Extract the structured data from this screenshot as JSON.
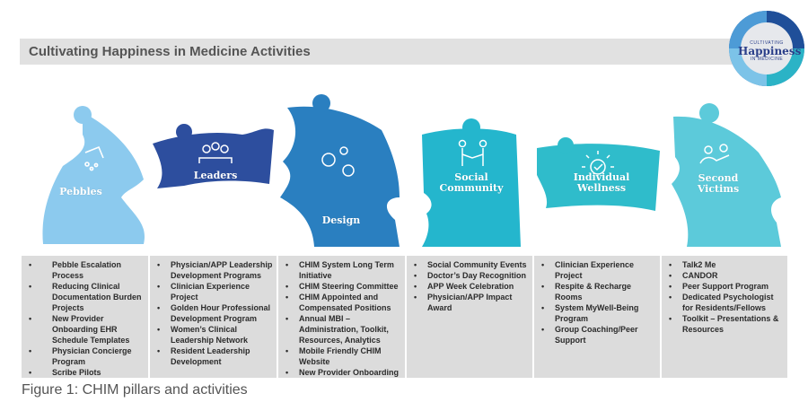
{
  "title": "Cultivating Happiness in Medicine Activities",
  "logo": {
    "line1": "CULTIVATING",
    "line2": "Happiness",
    "line3": "IN MEDICINE"
  },
  "colors": {
    "pebbles": "#8ccaee",
    "leaders": "#2d4e9e",
    "design": "#2a7fc0",
    "social": "#24b6cd",
    "wellness": "#2fbccb",
    "victims": "#5ccada",
    "panel": "#dcdcdc"
  },
  "pillars": [
    {
      "label": "Pebbles",
      "icon": "pebbles-icon",
      "items": [
        "Pebble Escalation Process",
        "Reducing Clinical Documentation Burden Projects",
        "New Provider Onboarding EHR Schedule Templates",
        "Physician Concierge Program",
        "Scribe Pilots"
      ]
    },
    {
      "label": "Leaders",
      "icon": "people-group-icon",
      "items": [
        "Physician/APP Leadership Development Programs",
        "Clinician Experience Project",
        "Golden Hour Professional Development Program",
        "Women’s Clinical Leadership Network",
        "Resident Leadership Development"
      ]
    },
    {
      "label": "Design",
      "icon": "gears-icon",
      "items": [
        "CHIM System Long Term Initiative",
        "CHIM Steering Committee",
        "CHIM Appointed and Compensated Positions",
        "Annual MBI – Administration, Toolkit, Resources, Analytics",
        "Mobile Friendly CHIM Website",
        "New Provider Onboarding"
      ]
    },
    {
      "label1": "Social",
      "label2": "Community",
      "icon": "handshake-icon",
      "items": [
        "Social Community Events",
        "Doctor’s Day Recognition",
        "APP Week Celebration",
        "Physician/APP Impact Award"
      ]
    },
    {
      "label1": "Individual",
      "label2": "Wellness",
      "icon": "sun-check-icon",
      "items": [
        "Clinician Experience Project",
        "Respite & Recharge Rooms",
        "System MyWell-Being Program",
        "Group Coaching/Peer Support"
      ]
    },
    {
      "label1": "Second",
      "label2": "Victims",
      "icon": "support-person-icon",
      "items": [
        "Talk2 Me",
        "CANDOR",
        "Peer Support Program",
        "Dedicated Psychologist for Residents/Fellows",
        "Toolkit – Presentations & Resources"
      ]
    }
  ],
  "caption": "Figure 1: CHIM pillars and activities"
}
